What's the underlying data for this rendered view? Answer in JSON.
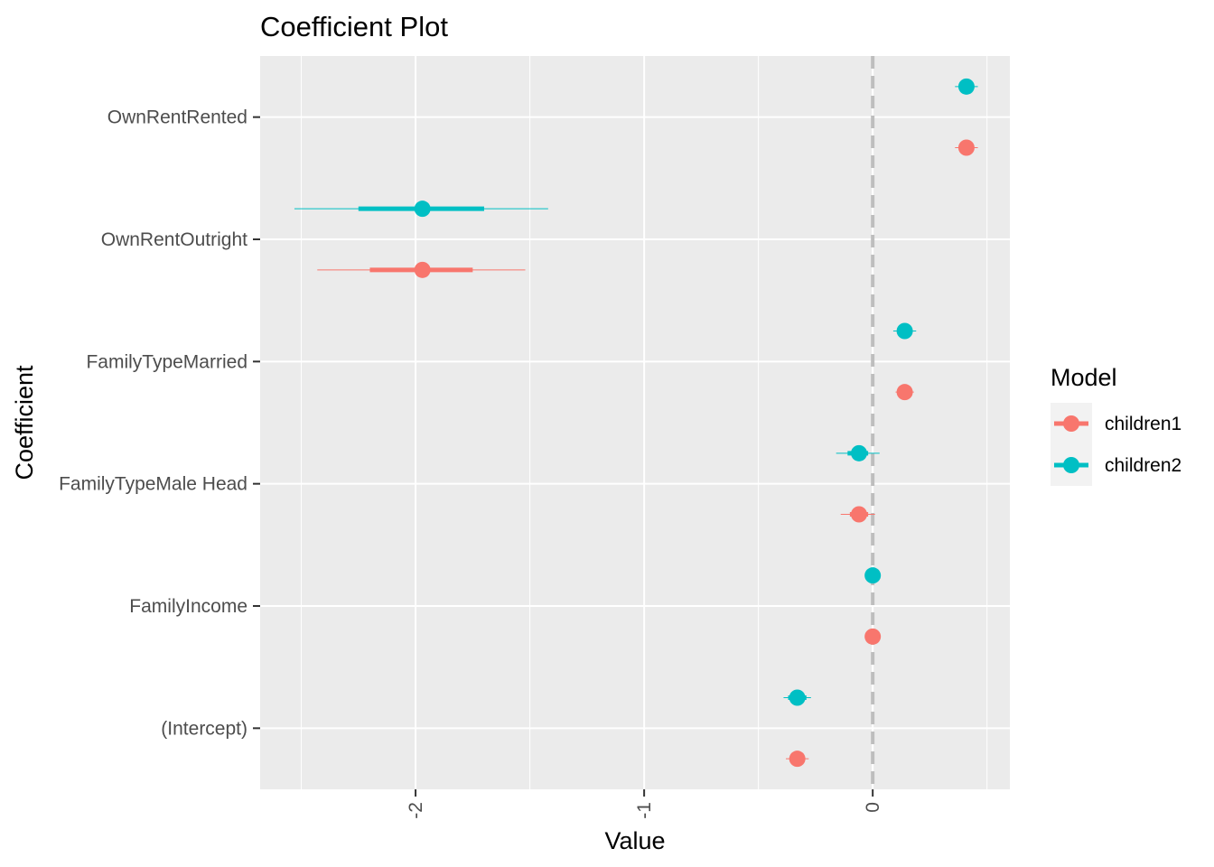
{
  "chart_data": {
    "type": "scatter",
    "title": "Coefficient Plot",
    "xlabel": "Value",
    "ylabel": "Coefficient",
    "xlim": [
      -2.68,
      0.6
    ],
    "x_ticks": [
      {
        "value": -2,
        "label": "-2"
      },
      {
        "value": -1,
        "label": "-1"
      },
      {
        "value": 0,
        "label": "0"
      }
    ],
    "categories": [
      "(Intercept)",
      "FamilyIncome",
      "FamilyTypeMale Head",
      "FamilyTypeMarried",
      "OwnRentOutright",
      "OwnRentRented"
    ],
    "reference_line": 0,
    "grid": true,
    "legend": {
      "title": "Model",
      "position": "right"
    },
    "series": [
      {
        "name": "children1",
        "color": "#F8766D",
        "points": [
          {
            "category": "(Intercept)",
            "estimate": -0.33,
            "inner": [
              -0.36,
              -0.3
            ],
            "outer": [
              -0.38,
              -0.28
            ]
          },
          {
            "category": "FamilyIncome",
            "estimate": 0.0,
            "inner": [
              -0.01,
              0.01
            ],
            "outer": [
              -0.01,
              0.01
            ]
          },
          {
            "category": "FamilyTypeMale Head",
            "estimate": -0.06,
            "inner": [
              -0.1,
              -0.02
            ],
            "outer": [
              -0.14,
              0.01
            ]
          },
          {
            "category": "FamilyTypeMarried",
            "estimate": 0.14,
            "inner": [
              0.12,
              0.16
            ],
            "outer": [
              0.1,
              0.18
            ]
          },
          {
            "category": "OwnRentOutright",
            "estimate": -1.97,
            "inner": [
              -2.2,
              -1.75
            ],
            "outer": [
              -2.43,
              -1.52
            ]
          },
          {
            "category": "OwnRentRented",
            "estimate": 0.41,
            "inner": [
              0.38,
              0.44
            ],
            "outer": [
              0.36,
              0.46
            ]
          }
        ]
      },
      {
        "name": "children2",
        "color": "#00BFC4",
        "points": [
          {
            "category": "(Intercept)",
            "estimate": -0.33,
            "inner": [
              -0.37,
              -0.29
            ],
            "outer": [
              -0.39,
              -0.27
            ]
          },
          {
            "category": "FamilyIncome",
            "estimate": 0.0,
            "inner": [
              -0.01,
              0.01
            ],
            "outer": [
              -0.01,
              0.01
            ]
          },
          {
            "category": "FamilyTypeMale Head",
            "estimate": -0.06,
            "inner": [
              -0.11,
              -0.02
            ],
            "outer": [
              -0.16,
              0.03
            ]
          },
          {
            "category": "FamilyTypeMarried",
            "estimate": 0.14,
            "inner": [
              0.11,
              0.17
            ],
            "outer": [
              0.09,
              0.19
            ]
          },
          {
            "category": "OwnRentOutright",
            "estimate": -1.97,
            "inner": [
              -2.25,
              -1.7
            ],
            "outer": [
              -2.53,
              -1.42
            ]
          },
          {
            "category": "OwnRentRented",
            "estimate": 0.41,
            "inner": [
              0.38,
              0.44
            ],
            "outer": [
              0.36,
              0.46
            ]
          }
        ]
      }
    ]
  }
}
